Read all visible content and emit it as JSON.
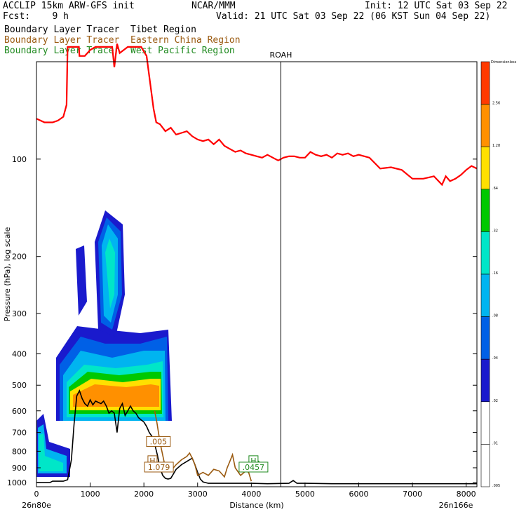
{
  "header": {
    "model": "ACCLIP 15km ARW-GFS init",
    "org": "NCAR/MMM",
    "init": "Init: 12 UTC Sat 03 Sep 22",
    "fcst": "Fcst:    9 h",
    "valid": "Valid: 21 UTC Sat 03 Sep 22 (06 KST Sun 04 Sep 22)",
    "fields": [
      {
        "label": "Boundary Layer Tracer",
        "region": "Tibet Region",
        "color": "#000000"
      },
      {
        "label": "Boundary Layer Tracer",
        "region": "Eastern China Region",
        "color": "#9a5a10"
      },
      {
        "label": "Boundary Layer Tracer",
        "region": "West Pacific Region",
        "color": "#1f8a1f"
      }
    ]
  },
  "chart_data": {
    "type": "cross-section",
    "xlabel": "Distance (km)",
    "ylabel": "Pressure (hPa), log scale",
    "xlim": [
      0,
      8200
    ],
    "ylim": [
      1030,
      50
    ],
    "x_ticks": [
      0,
      1000,
      2000,
      3000,
      4000,
      5000,
      6000,
      7000,
      8000
    ],
    "y_ticks": [
      100,
      200,
      300,
      400,
      500,
      600,
      700,
      800,
      900,
      1000
    ],
    "endpoints": {
      "left": "26n80e",
      "right": "26n166e"
    },
    "marker": {
      "label": "ROAH",
      "x": 4550
    },
    "colorbar": {
      "title": "Dimensionless",
      "levels": [
        "2.56",
        "1.28",
        ".64",
        ".32",
        ".16",
        ".08",
        ".04",
        ".02",
        ".01",
        ".005"
      ],
      "colors": [
        "#ff3a00",
        "#ff9000",
        "#ffe000",
        "#00c800",
        "#00e6c8",
        "#00b4f0",
        "#0060e6",
        "#1a1acd",
        "#ffffff",
        "#ffffff"
      ]
    },
    "annotations": [
      {
        "text": ".005",
        "x": 2270,
        "p": 750,
        "color": "#9a5a10"
      },
      {
        "text": "H",
        "x": 2160,
        "p": 860,
        "color": "#9a5a10"
      },
      {
        "text": "1.079",
        "x": 2280,
        "p": 900,
        "color": "#9a5a10"
      },
      {
        "text": "H",
        "x": 4040,
        "p": 860,
        "color": "#1f8a1f"
      },
      {
        "text": ".0457",
        "x": 4040,
        "p": 900,
        "color": "#1f8a1f"
      }
    ],
    "series": [
      {
        "name": "Tropopause",
        "color": "#ff0000",
        "x": [
          0,
          150,
          300,
          400,
          500,
          560,
          580,
          700,
          790,
          800,
          900,
          1000,
          1100,
          1200,
          1300,
          1410,
          1450,
          1500,
          1550,
          1700,
          1850,
          1950,
          2050,
          2180,
          2230,
          2300,
          2400,
          2500,
          2600,
          2700,
          2800,
          2900,
          3000,
          3100,
          3200,
          3300,
          3400,
          3500,
          3600,
          3700,
          3800,
          3900,
          4000,
          4100,
          4200,
          4300,
          4400,
          4500,
          4600,
          4700,
          4800,
          4900,
          5000,
          5100,
          5200,
          5300,
          5400,
          5500,
          5600,
          5700,
          5800,
          5900,
          6000,
          6200,
          6400,
          6600,
          6800,
          7000,
          7200,
          7400,
          7550,
          7620,
          7700,
          7800,
          7900,
          8000,
          8100,
          8200
        ],
        "p": [
          75,
          77,
          77,
          76,
          74,
          68,
          45,
          45,
          45,
          48,
          48,
          46,
          45,
          45,
          45,
          45,
          52,
          44,
          47,
          45,
          45,
          45,
          48,
          70,
          77,
          78,
          82,
          80,
          84,
          83,
          82,
          85,
          87,
          88,
          87,
          90,
          87,
          91,
          93,
          95,
          94,
          96,
          97,
          98,
          99,
          97,
          99,
          101,
          99,
          98,
          98,
          99,
          99,
          95,
          97,
          98,
          97,
          99,
          96,
          97,
          96,
          98,
          97,
          99,
          107,
          106,
          108,
          115,
          115,
          113,
          120,
          113,
          117,
          115,
          112,
          108,
          105,
          107
        ]
      },
      {
        "name": "Terrain",
        "color": "#000000",
        "x": [
          0,
          250,
          300,
          500,
          580,
          650,
          700,
          750,
          800,
          850,
          900,
          950,
          1000,
          1050,
          1100,
          1150,
          1200,
          1250,
          1300,
          1350,
          1400,
          1450,
          1500,
          1550,
          1600,
          1650,
          1700,
          1750,
          1800,
          1850,
          1900,
          1950,
          2000,
          2050,
          2100,
          2150,
          2200,
          2250,
          2300,
          2350,
          2400,
          2450,
          2500,
          2600,
          2700,
          2800,
          2900,
          2950,
          3000,
          3050,
          3100,
          3200,
          3400,
          3600,
          3800,
          4000,
          4300,
          4700,
          4780,
          4850,
          5000,
          5500,
          6000,
          6500,
          7000,
          7500,
          8000,
          8200
        ],
        "p": [
          1000,
          1000,
          990,
          990,
          980,
          850,
          660,
          540,
          520,
          550,
          570,
          580,
          555,
          575,
          560,
          565,
          570,
          560,
          580,
          610,
          600,
          610,
          700,
          590,
          570,
          620,
          600,
          580,
          600,
          610,
          630,
          640,
          650,
          670,
          700,
          720,
          760,
          820,
          900,
          950,
          970,
          975,
          970,
          910,
          880,
          860,
          840,
          880,
          930,
          975,
          995,
          1005,
          1005,
          1005,
          1005,
          1005,
          1008,
          1005,
          985,
          1005,
          1005,
          1008,
          1008,
          1008,
          1008,
          1008,
          1008,
          1008
        ]
      },
      {
        "name": "Eastern China tracer",
        "color": "#9a5a10",
        "x": [
          2200,
          2240,
          2300,
          2400,
          2500,
          2600,
          2700,
          2800,
          2850,
          2900,
          2950,
          3000,
          3100,
          3200,
          3300,
          3400,
          3500,
          3550,
          3600,
          3650,
          3700,
          3800,
          3900,
          3950,
          4000
        ],
        "p": [
          600,
          650,
          750,
          900,
          920,
          880,
          850,
          830,
          810,
          840,
          880,
          950,
          930,
          950,
          910,
          920,
          960,
          900,
          860,
          820,
          900,
          950,
          920,
          930,
          990
        ]
      },
      {
        "name": "West Pacific tracer",
        "color": "#1f8a1f",
        "x": [
          4000,
          4050,
          4100,
          4200
        ],
        "p": [
          860,
          880,
          850,
          880
        ]
      }
    ]
  }
}
